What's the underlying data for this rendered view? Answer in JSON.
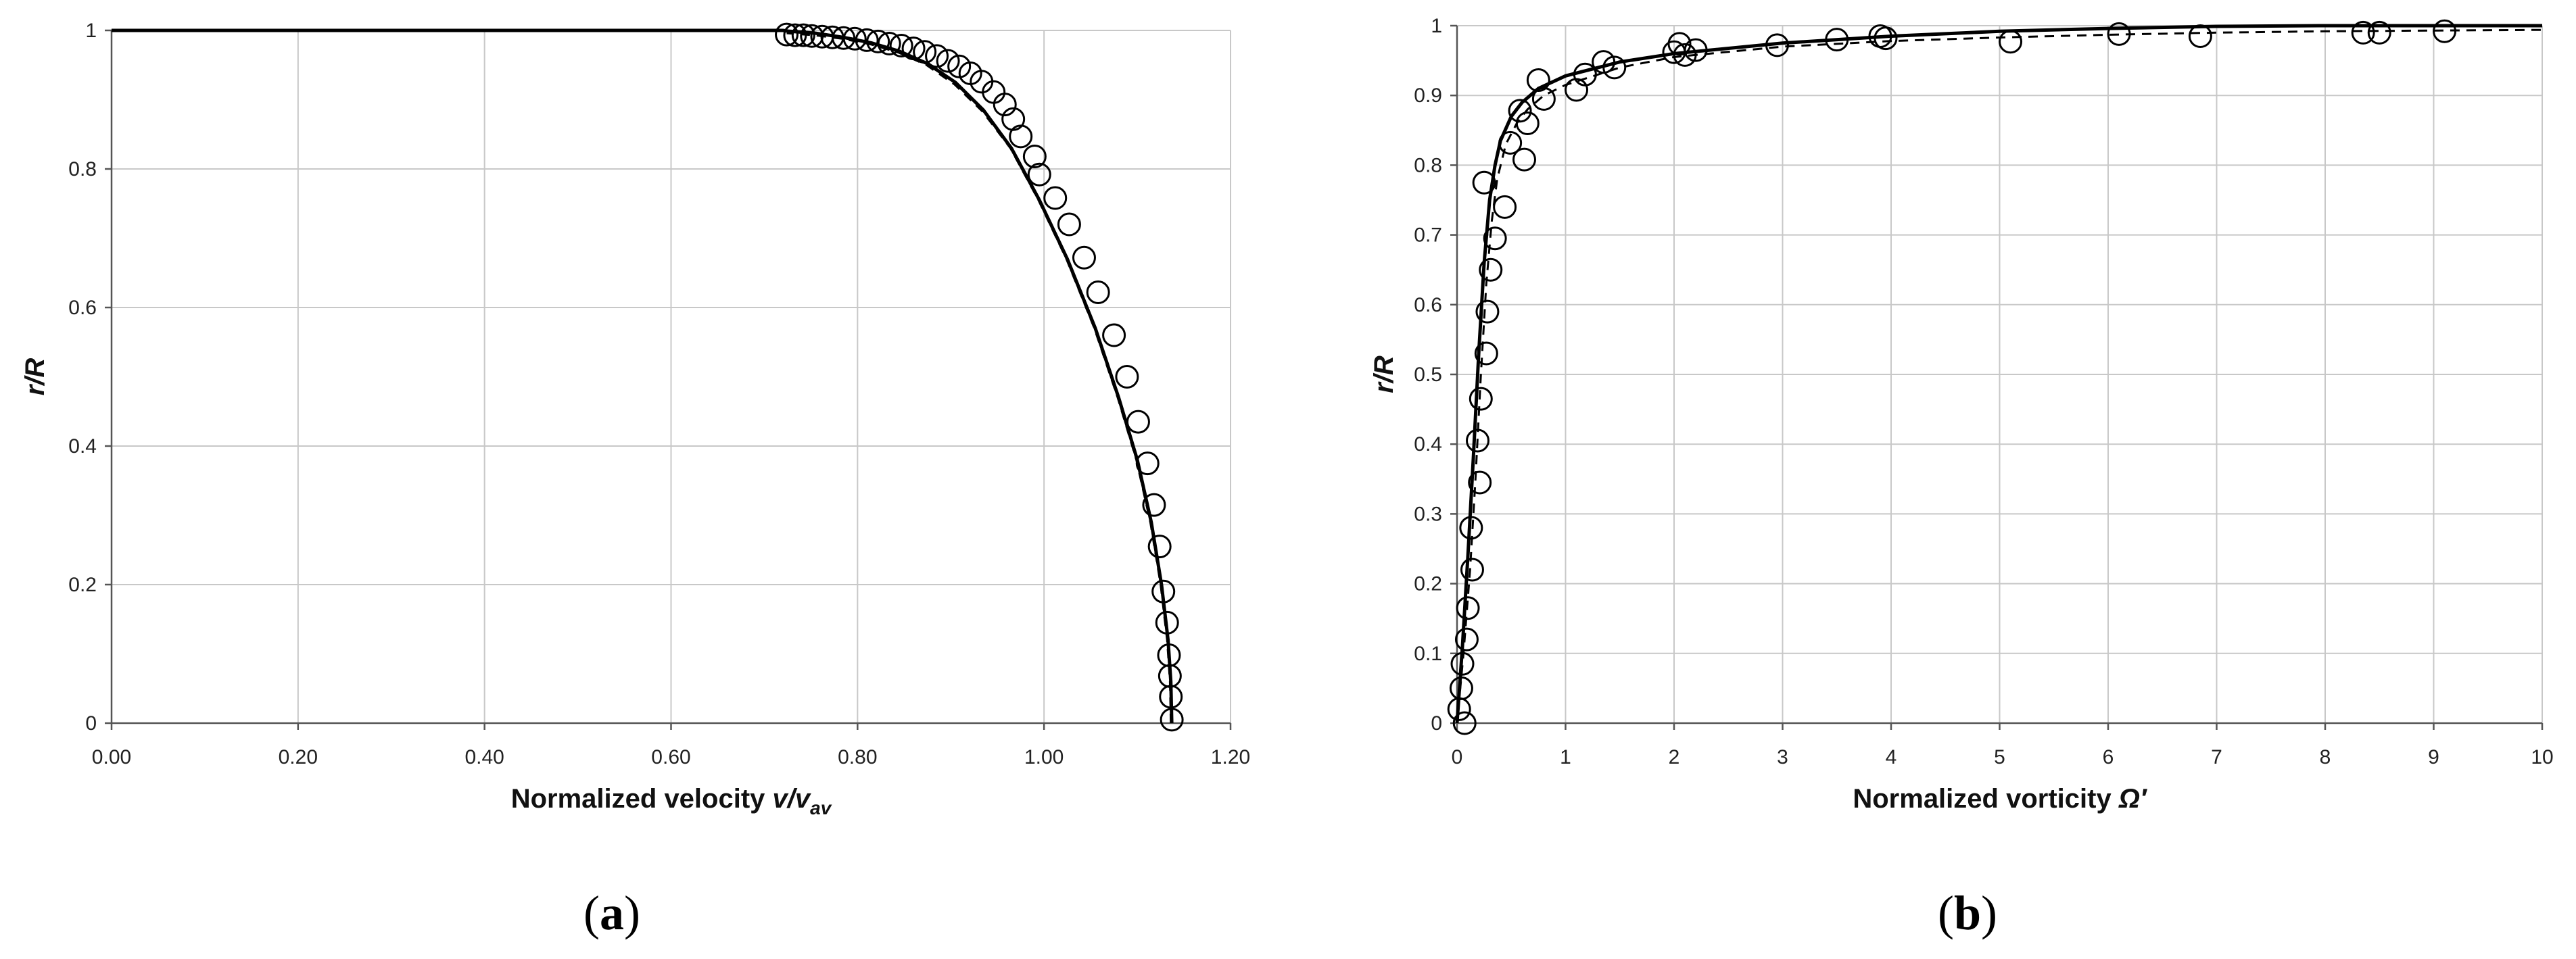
{
  "chart_data": [
    {
      "type": "line",
      "label": "a",
      "xlabel_main": "Normalized velocity ",
      "xlabel_var": "v/v",
      "xlabel_sub": "av",
      "ylabel": "r/R",
      "xlim": [
        0,
        1.2
      ],
      "ylim": [
        0,
        1
      ],
      "x_ticks": [
        "0.00",
        "0.20",
        "0.40",
        "0.60",
        "0.80",
        "1.00",
        "1.20"
      ],
      "y_ticks": [
        "0",
        "0.2",
        "0.4",
        "0.6",
        "0.8",
        "1"
      ],
      "grid": true,
      "series": [
        {
          "style": "markers",
          "x": [
            1.137,
            1.136,
            1.135,
            1.134,
            1.132,
            1.128,
            1.124,
            1.118,
            1.111,
            1.101,
            1.089,
            1.075,
            1.058,
            1.043,
            1.027,
            1.012,
            0.995,
            0.99,
            0.975,
            0.967,
            0.958,
            0.946,
            0.933,
            0.921,
            0.909,
            0.897,
            0.885,
            0.872,
            0.86,
            0.847,
            0.834,
            0.822,
            0.81,
            0.797,
            0.785,
            0.773,
            0.762,
            0.751,
            0.742,
            0.733,
            0.724
          ],
          "y": [
            0.005,
            0.038,
            0.068,
            0.098,
            0.145,
            0.19,
            0.255,
            0.315,
            0.375,
            0.435,
            0.5,
            0.56,
            0.622,
            0.672,
            0.72,
            0.758,
            0.792,
            0.818,
            0.847,
            0.872,
            0.893,
            0.911,
            0.926,
            0.938,
            0.948,
            0.956,
            0.963,
            0.969,
            0.974,
            0.978,
            0.981,
            0.984,
            0.986,
            0.988,
            0.989,
            0.99,
            0.991,
            0.992,
            0.993,
            0.993,
            0.994
          ]
        },
        {
          "style": "solid",
          "x": [
            1.137,
            1.136,
            1.133,
            1.126,
            1.115,
            1.1,
            1.08,
            1.055,
            1.025,
            0.995,
            0.965,
            0.935,
            0.905,
            0.875,
            0.845,
            0.815,
            0.785,
            0.755,
            0.725,
            0.72,
            0.6,
            0.4,
            0.2,
            0.0
          ],
          "y": [
            0.0,
            0.06,
            0.12,
            0.2,
            0.29,
            0.38,
            0.47,
            0.57,
            0.67,
            0.755,
            0.83,
            0.885,
            0.925,
            0.952,
            0.97,
            0.982,
            0.99,
            0.996,
            0.999,
            1.0,
            1.0,
            1.0,
            1.0,
            1.0
          ]
        },
        {
          "style": "dashed",
          "x": [
            1.136,
            1.135,
            1.132,
            1.125,
            1.114,
            1.099,
            1.079,
            1.054,
            1.024,
            0.994,
            0.964,
            0.934,
            0.904,
            0.874,
            0.844,
            0.814,
            0.784,
            0.754,
            0.724
          ],
          "y": [
            0.0,
            0.06,
            0.12,
            0.2,
            0.29,
            0.38,
            0.47,
            0.57,
            0.67,
            0.755,
            0.83,
            0.883,
            0.922,
            0.95,
            0.968,
            0.98,
            0.988,
            0.993,
            0.996
          ]
        }
      ]
    },
    {
      "type": "line",
      "label": "b",
      "xlabel_main": "Normalized vorticity ",
      "xlabel_var": "Ω′",
      "ylabel": "r/R",
      "xlim": [
        0,
        10
      ],
      "ylim": [
        0,
        1
      ],
      "x_ticks": [
        "0",
        "1",
        "2",
        "3",
        "4",
        "5",
        "6",
        "7",
        "8",
        "9",
        "10"
      ],
      "y_ticks": [
        "0",
        "0.1",
        "0.2",
        "0.3",
        "0.4",
        "0.5",
        "0.6",
        "0.7",
        "0.8",
        "0.9",
        "1"
      ],
      "grid": true,
      "series": [
        {
          "style": "markers",
          "x": [
            0.07,
            0.02,
            0.04,
            0.05,
            0.09,
            0.1,
            0.14,
            0.13,
            0.21,
            0.19,
            0.22,
            0.27,
            0.28,
            0.31,
            0.35,
            0.44,
            0.49,
            0.58,
            0.62,
            0.65,
            0.75,
            0.8,
            0.25,
            1.1,
            1.18,
            1.35,
            1.45,
            2.0,
            2.05,
            2.1,
            2.2,
            2.95,
            3.5,
            3.9,
            3.95,
            5.1,
            6.1,
            6.85,
            8.35,
            8.5,
            9.1
          ],
          "y": [
            0.0,
            0.02,
            0.05,
            0.085,
            0.12,
            0.165,
            0.22,
            0.28,
            0.345,
            0.405,
            0.465,
            0.53,
            0.59,
            0.65,
            0.695,
            0.74,
            0.832,
            0.878,
            0.808,
            0.86,
            0.922,
            0.895,
            0.775,
            0.908,
            0.93,
            0.948,
            0.94,
            0.962,
            0.974,
            0.958,
            0.965,
            0.972,
            0.98,
            0.985,
            0.982,
            0.977,
            0.988,
            0.985,
            0.99,
            0.99,
            0.992
          ]
        },
        {
          "style": "solid",
          "x": [
            0.0,
            0.05,
            0.1,
            0.15,
            0.2,
            0.25,
            0.3,
            0.35,
            0.4,
            0.5,
            0.6,
            0.75,
            1.0,
            1.5,
            2.0,
            3.0,
            4.0,
            5.0,
            6.0,
            7.0,
            8.0,
            9.0,
            10.0
          ],
          "y": [
            0.0,
            0.11,
            0.24,
            0.38,
            0.53,
            0.66,
            0.75,
            0.8,
            0.835,
            0.87,
            0.89,
            0.91,
            0.928,
            0.948,
            0.96,
            0.975,
            0.985,
            0.992,
            0.996,
            0.999,
            1.0,
            1.0,
            1.0
          ]
        },
        {
          "style": "dashed",
          "x": [
            0.0,
            0.06,
            0.12,
            0.17,
            0.22,
            0.27,
            0.32,
            0.37,
            0.45,
            0.55,
            0.65,
            0.8,
            1.0,
            1.5,
            2.0,
            3.0,
            4.0,
            5.0,
            6.0,
            7.0,
            8.0,
            9.0,
            10.0
          ],
          "y": [
            0.0,
            0.1,
            0.22,
            0.35,
            0.5,
            0.63,
            0.72,
            0.78,
            0.83,
            0.86,
            0.88,
            0.9,
            0.915,
            0.94,
            0.955,
            0.97,
            0.978,
            0.983,
            0.987,
            0.99,
            0.992,
            0.993,
            0.994
          ]
        }
      ]
    }
  ]
}
